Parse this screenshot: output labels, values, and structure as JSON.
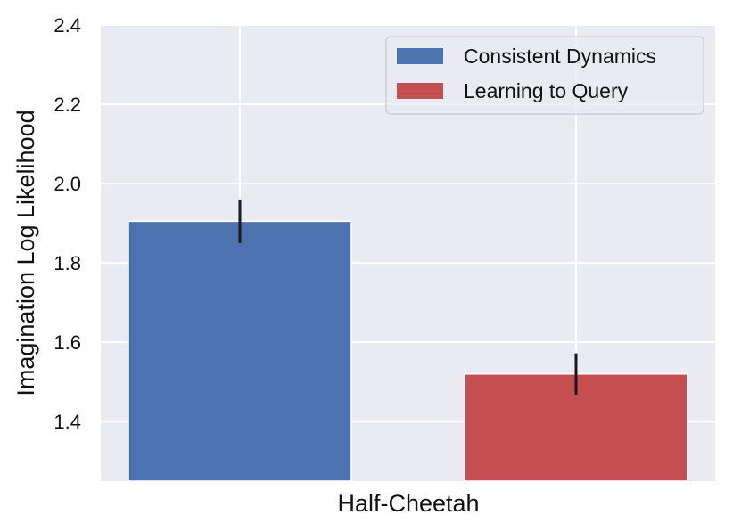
{
  "chart_data": {
    "type": "bar",
    "categories": [
      "Half-Cheetah"
    ],
    "xlabel": "Half-Cheetah",
    "ylabel": "Imagination Log Likelihood",
    "ylim": [
      1.25,
      2.4
    ],
    "yticks": [
      "1.4",
      "1.6",
      "1.8",
      "2.0",
      "2.2",
      "2.4"
    ],
    "grid": true,
    "legend_position": "top-right",
    "series": [
      {
        "name": "Consistent Dynamics",
        "color": "#4c72b0",
        "values": [
          1.905
        ],
        "error": [
          0.055
        ]
      },
      {
        "name": "Learning to Query",
        "color": "#c44e52",
        "values": [
          1.52
        ],
        "error": [
          0.052
        ]
      }
    ]
  }
}
